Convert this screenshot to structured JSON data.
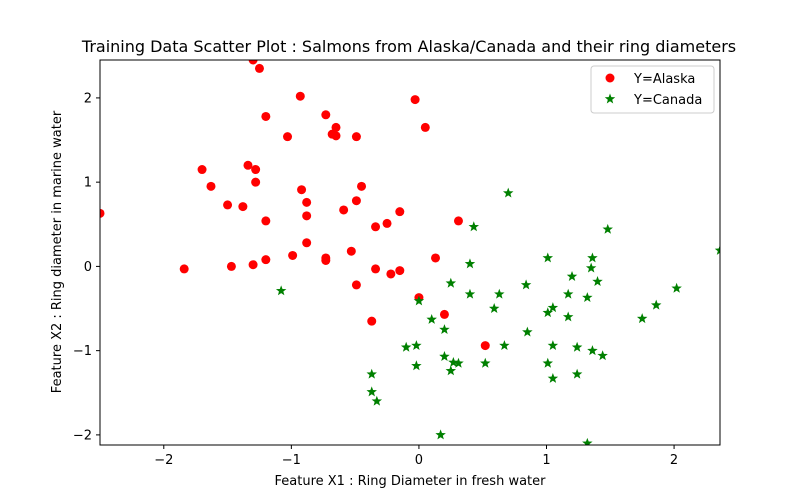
{
  "chart_data": {
    "type": "scatter",
    "title": "Training Data Scatter Plot : Salmons from Alaska/Canada and their ring diameters",
    "xlabel": "Feature X1 : Ring Diameter in fresh water",
    "ylabel": "Feature X2 : Ring diameter in marine water",
    "xlim": [
      -2.5,
      2.36
    ],
    "ylim": [
      -2.12,
      2.45
    ],
    "xticks": [
      -2,
      -1,
      0,
      1,
      2
    ],
    "yticks": [
      -2,
      -1,
      0,
      1,
      2
    ],
    "xtick_labels": [
      "−2",
      "−1",
      "0",
      "1",
      "2"
    ],
    "ytick_labels": [
      "−2",
      "−1",
      "0",
      "1",
      "2"
    ],
    "legend_position": "top-right",
    "series": [
      {
        "name": "Y=Alaska",
        "marker": "circle",
        "color": "#ff0000",
        "points": [
          [
            -2.5,
            0.63
          ],
          [
            -1.3,
            2.45
          ],
          [
            -1.25,
            2.35
          ],
          [
            -0.93,
            2.02
          ],
          [
            -0.03,
            1.98
          ],
          [
            -1.2,
            1.78
          ],
          [
            -0.73,
            1.8
          ],
          [
            0.05,
            1.65
          ],
          [
            -0.65,
            1.65
          ],
          [
            -0.68,
            1.57
          ],
          [
            -0.65,
            1.55
          ],
          [
            -1.03,
            1.54
          ],
          [
            -0.49,
            1.54
          ],
          [
            -1.34,
            1.2
          ],
          [
            -1.7,
            1.15
          ],
          [
            -1.28,
            1.15
          ],
          [
            -1.28,
            1.0
          ],
          [
            -1.63,
            0.95
          ],
          [
            -0.45,
            0.95
          ],
          [
            -0.92,
            0.91
          ],
          [
            -0.49,
            0.78
          ],
          [
            -1.5,
            0.73
          ],
          [
            -0.88,
            0.76
          ],
          [
            -1.38,
            0.71
          ],
          [
            -0.59,
            0.67
          ],
          [
            -0.15,
            0.65
          ],
          [
            -0.88,
            0.6
          ],
          [
            -1.2,
            0.54
          ],
          [
            0.31,
            0.54
          ],
          [
            -0.25,
            0.51
          ],
          [
            -0.34,
            0.47
          ],
          [
            -0.88,
            0.28
          ],
          [
            -0.53,
            0.18
          ],
          [
            -0.99,
            0.13
          ],
          [
            0.13,
            0.1
          ],
          [
            -0.73,
            0.1
          ],
          [
            -0.73,
            0.07
          ],
          [
            -1.2,
            0.08
          ],
          [
            -1.3,
            0.02
          ],
          [
            -1.47,
            0.0
          ],
          [
            -1.84,
            -0.03
          ],
          [
            -0.34,
            -0.03
          ],
          [
            -0.15,
            -0.05
          ],
          [
            -0.22,
            -0.09
          ],
          [
            -0.49,
            -0.22
          ],
          [
            0.0,
            -0.37
          ],
          [
            0.2,
            -0.57
          ],
          [
            -0.37,
            -0.65
          ],
          [
            0.52,
            -0.94
          ]
        ]
      },
      {
        "name": "Y=Canada",
        "marker": "star",
        "color": "#008000",
        "points": [
          [
            0.7,
            0.87
          ],
          [
            2.36,
            0.19
          ],
          [
            1.48,
            0.44
          ],
          [
            0.43,
            0.47
          ],
          [
            1.01,
            0.1
          ],
          [
            1.36,
            0.1
          ],
          [
            0.4,
            0.03
          ],
          [
            1.35,
            -0.02
          ],
          [
            1.2,
            -0.12
          ],
          [
            1.4,
            -0.18
          ],
          [
            2.02,
            -0.26
          ],
          [
            0.84,
            -0.22
          ],
          [
            0.25,
            -0.2
          ],
          [
            -1.08,
            -0.29
          ],
          [
            0.4,
            -0.33
          ],
          [
            0.63,
            -0.33
          ],
          [
            1.17,
            -0.33
          ],
          [
            1.32,
            -0.37
          ],
          [
            0.0,
            -0.41
          ],
          [
            1.05,
            -0.49
          ],
          [
            0.59,
            -0.5
          ],
          [
            1.86,
            -0.46
          ],
          [
            1.01,
            -0.55
          ],
          [
            1.17,
            -0.6
          ],
          [
            1.75,
            -0.62
          ],
          [
            0.1,
            -0.63
          ],
          [
            0.2,
            -0.75
          ],
          [
            0.85,
            -0.78
          ],
          [
            -0.1,
            -0.96
          ],
          [
            -0.02,
            -0.94
          ],
          [
            0.67,
            -0.94
          ],
          [
            1.05,
            -0.94
          ],
          [
            1.24,
            -0.96
          ],
          [
            1.36,
            -1.0
          ],
          [
            1.44,
            -1.06
          ],
          [
            0.2,
            -1.07
          ],
          [
            0.27,
            -1.14
          ],
          [
            0.31,
            -1.15
          ],
          [
            0.52,
            -1.15
          ],
          [
            1.01,
            -1.15
          ],
          [
            -0.02,
            -1.18
          ],
          [
            0.25,
            -1.24
          ],
          [
            -0.37,
            -1.28
          ],
          [
            1.24,
            -1.28
          ],
          [
            1.05,
            -1.33
          ],
          [
            -0.37,
            -1.49
          ],
          [
            -0.33,
            -1.6
          ],
          [
            0.17,
            -2.0
          ],
          [
            1.32,
            -2.1
          ]
        ]
      }
    ]
  }
}
